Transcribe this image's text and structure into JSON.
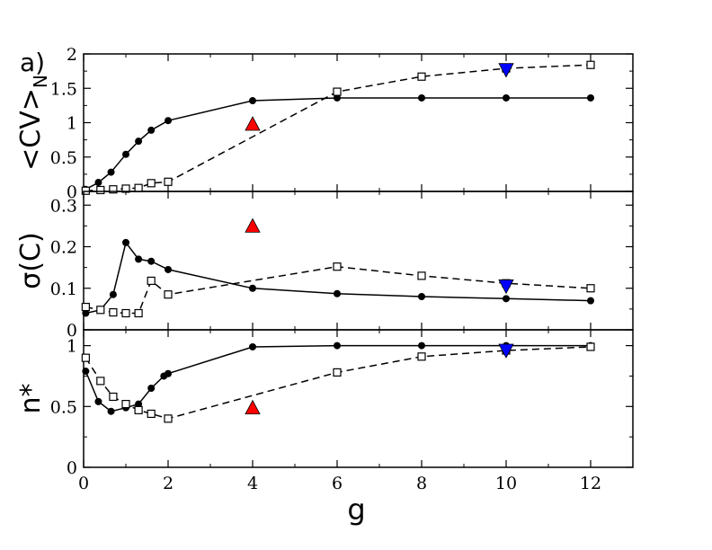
{
  "chart_data": [
    {
      "type": "line",
      "panel_label": "a)",
      "ylabel": "<CV>",
      "ylabel_subscript": "N",
      "ylim": [
        0,
        2
      ],
      "yticks": [
        0,
        0.5,
        1,
        1.5,
        2
      ],
      "ytick_labels": [
        "0",
        "0.5",
        "1",
        "1.5",
        "2"
      ],
      "series": [
        {
          "style": "solid-filled-circle",
          "x": [
            0.05,
            0.35,
            0.65,
            1.0,
            1.3,
            1.6,
            2.0,
            4.0,
            6.0,
            8.0,
            10.0,
            12.0
          ],
          "y": [
            0.03,
            0.13,
            0.28,
            0.54,
            0.73,
            0.89,
            1.03,
            1.32,
            1.36,
            1.36,
            1.36,
            1.36
          ]
        },
        {
          "style": "dashed-open-square",
          "x": [
            0.05,
            0.4,
            0.7,
            1.0,
            1.3,
            1.6,
            2.0,
            6.0,
            8.0,
            10.0,
            12.0
          ],
          "y": [
            0.01,
            0.02,
            0.03,
            0.04,
            0.05,
            0.12,
            0.14,
            1.45,
            1.67,
            1.79,
            1.84
          ]
        }
      ],
      "markers": [
        {
          "shape": "triangle-up",
          "color": "#ff0000",
          "x": 4.0,
          "y": 0.98
        },
        {
          "shape": "triangle-down",
          "color": "#0000ff",
          "x": 10.0,
          "y": 1.77
        }
      ]
    },
    {
      "type": "line",
      "ylabel": "σ(C)",
      "ylim": [
        0,
        0.333
      ],
      "yticks": [
        0,
        0.1,
        0.2,
        0.3
      ],
      "ytick_labels": [
        "0",
        "0.1",
        "0.2",
        "0.3"
      ],
      "series": [
        {
          "style": "solid-filled-circle",
          "x": [
            0.05,
            0.4,
            0.7,
            1.0,
            1.3,
            1.6,
            2.0,
            4.0,
            6.0,
            8.0,
            10.0,
            12.0
          ],
          "y": [
            0.04,
            0.048,
            0.085,
            0.21,
            0.17,
            0.165,
            0.145,
            0.1,
            0.087,
            0.08,
            0.075,
            0.07
          ]
        },
        {
          "style": "dashed-open-square",
          "x": [
            0.05,
            0.4,
            0.7,
            1.0,
            1.3,
            1.6,
            2.0,
            6.0,
            8.0,
            10.0,
            12.0
          ],
          "y": [
            0.055,
            0.048,
            0.042,
            0.04,
            0.04,
            0.118,
            0.085,
            0.152,
            0.13,
            0.112,
            0.1
          ]
        }
      ],
      "markers": [
        {
          "shape": "triangle-up",
          "color": "#ff0000",
          "x": 4.0,
          "y": 0.25
        },
        {
          "shape": "triangle-down",
          "color": "#0000ff",
          "x": 10.0,
          "y": 0.105
        }
      ]
    },
    {
      "type": "line",
      "ylabel": "n*",
      "xlabel": "g",
      "ylim": [
        0,
        1.13
      ],
      "xlim": [
        0,
        13
      ],
      "yticks": [
        0,
        0.5,
        1
      ],
      "ytick_labels": [
        "0",
        "0.5",
        "1"
      ],
      "xticks": [
        0,
        2,
        4,
        6,
        8,
        10,
        12
      ],
      "xtick_labels": [
        "0",
        "2",
        "4",
        "6",
        "8",
        "10",
        "12"
      ],
      "series": [
        {
          "style": "solid-filled-circle",
          "x": [
            0.05,
            0.35,
            0.65,
            1.0,
            1.3,
            1.6,
            1.9,
            2.0,
            4.0,
            6.0,
            8.0,
            10.0,
            12.0
          ],
          "y": [
            0.79,
            0.54,
            0.46,
            0.49,
            0.52,
            0.65,
            0.75,
            0.77,
            0.99,
            1.0,
            1.0,
            1.0,
            1.0
          ]
        },
        {
          "style": "dashed-open-square",
          "x": [
            0.05,
            0.4,
            0.7,
            1.0,
            1.3,
            1.6,
            2.0,
            6.0,
            8.0,
            10.0,
            12.0
          ],
          "y": [
            0.9,
            0.71,
            0.58,
            0.52,
            0.47,
            0.44,
            0.4,
            0.78,
            0.91,
            0.96,
            0.99
          ]
        }
      ],
      "markers": [
        {
          "shape": "triangle-up",
          "color": "#ff0000",
          "x": 4.0,
          "y": 0.49
        },
        {
          "shape": "triangle-down",
          "color": "#0000ff",
          "x": 10.0,
          "y": 0.96
        }
      ]
    }
  ]
}
